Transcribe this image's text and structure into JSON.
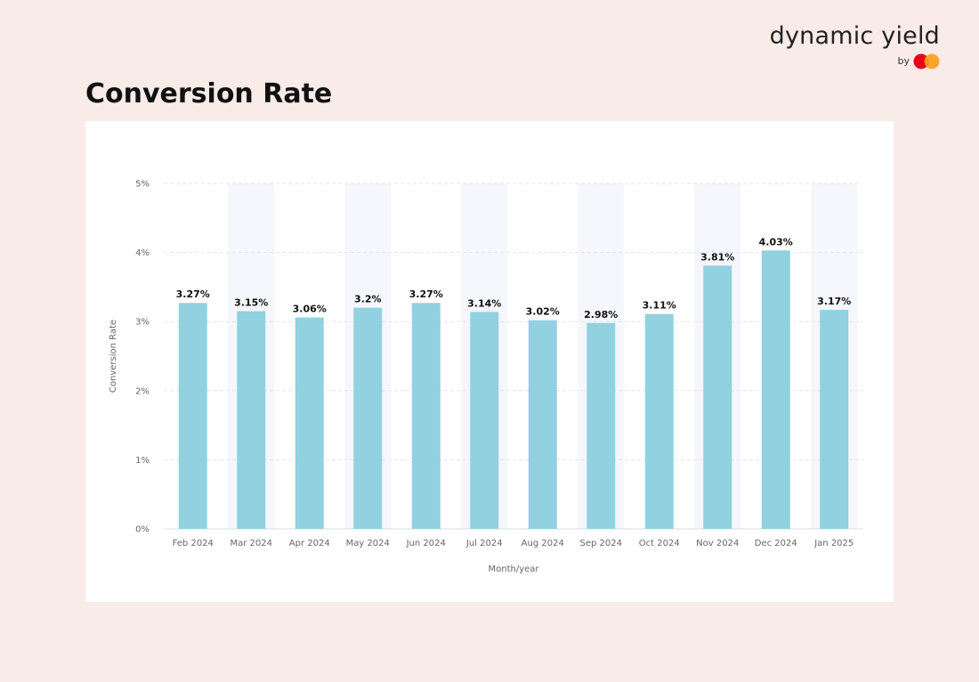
{
  "brand": {
    "name": "dynamic yield",
    "by": "by",
    "colors": {
      "red": "#eb001b",
      "orange": "#f79e1b"
    }
  },
  "page": {
    "title": "Conversion Rate"
  },
  "chart_data": {
    "type": "bar",
    "title": "Conversion Rate",
    "xlabel": "Month/year",
    "ylabel": "Conversion Rate",
    "categories": [
      "Feb 2024",
      "Mar 2024",
      "Apr 2024",
      "May 2024",
      "Jun 2024",
      "Jul 2024",
      "Aug 2024",
      "Sep 2024",
      "Oct 2024",
      "Nov 2024",
      "Dec 2024",
      "Jan 2025"
    ],
    "values": [
      3.27,
      3.15,
      3.06,
      3.2,
      3.27,
      3.14,
      3.02,
      2.98,
      3.11,
      3.81,
      4.03,
      3.17
    ],
    "value_labels": [
      "3.27%",
      "3.15%",
      "3.06%",
      "3.2%",
      "3.27%",
      "3.14%",
      "3.02%",
      "2.98%",
      "3.11%",
      "3.81%",
      "4.03%",
      "3.17%"
    ],
    "ylim": [
      0,
      5
    ],
    "yticks": [
      0,
      1,
      2,
      3,
      4,
      5
    ],
    "ytick_labels": [
      "0%",
      "1%",
      "2%",
      "3%",
      "4%",
      "5%"
    ],
    "grid": true,
    "bar_color": "#92d1e0",
    "band_color": "#f5f7fc",
    "legend": "none"
  }
}
